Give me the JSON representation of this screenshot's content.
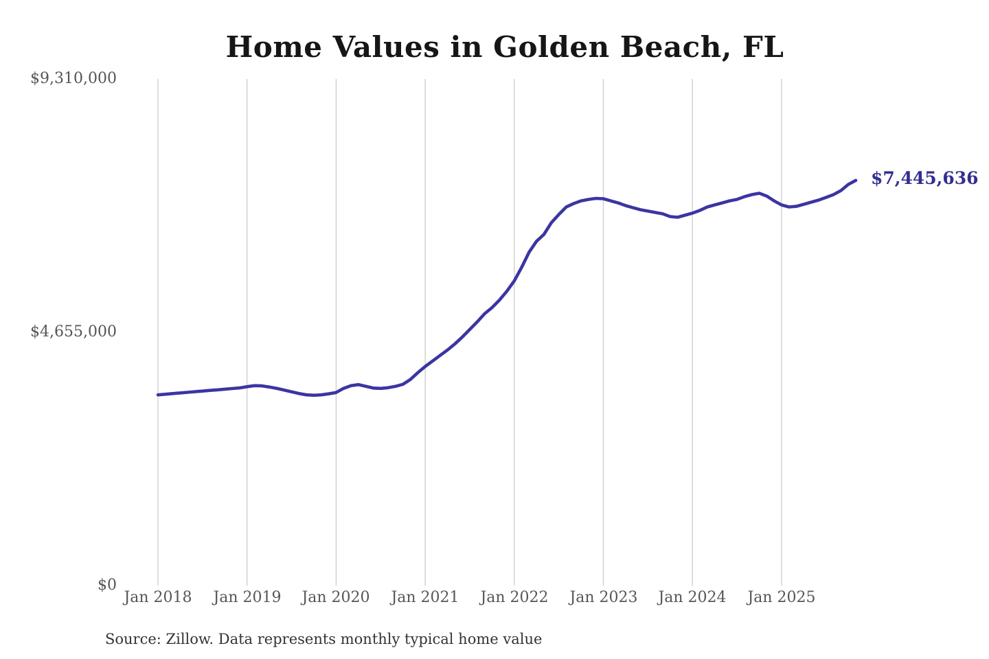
{
  "page": {
    "title": "Home Values in Golden Beach, FL"
  },
  "annotation": {
    "end_value_label": "$7,445,636"
  },
  "footer": {
    "source_note": "Source: Zillow. Data represents monthly typical home value"
  },
  "colors": {
    "background": "#ffffff",
    "line": "#3b35a2",
    "gridline": "#cccccc",
    "title": "#161616",
    "axis_label": "#565656",
    "annotation": "#322e92",
    "source": "#333333"
  },
  "chart_data": {
    "type": "line",
    "title": "Home Values in Golden Beach, FL",
    "xlabel": "",
    "ylabel": "",
    "x_tick_labels": [
      "Jan 2018",
      "Jan 2019",
      "Jan 2020",
      "Jan 2021",
      "Jan 2022",
      "Jan 2023",
      "Jan 2024",
      "Jan 2025"
    ],
    "y_ticks": [
      {
        "label": "$0",
        "value": 0
      },
      {
        "label": "$4,655,000",
        "value": 4655000
      },
      {
        "label": "$9,310,000",
        "value": 9310000
      }
    ],
    "ylim": [
      0,
      9310000
    ],
    "x_range": [
      "Jan 2018",
      "Nov 2025"
    ],
    "interval": "monthly",
    "grid": "vertical-yearly-only",
    "legend": "none",
    "end_value": 7445636,
    "series": [
      {
        "name": "Typical home value (USD)",
        "values": [
          3504000,
          3516000,
          3528000,
          3540000,
          3551000,
          3563000,
          3574000,
          3586000,
          3597000,
          3609000,
          3620000,
          3632000,
          3655000,
          3673000,
          3670000,
          3648000,
          3623000,
          3592000,
          3560000,
          3529000,
          3504000,
          3497000,
          3504000,
          3523000,
          3548000,
          3623000,
          3673000,
          3692000,
          3661000,
          3630000,
          3623000,
          3636000,
          3661000,
          3699000,
          3787000,
          3912000,
          4026000,
          4127000,
          4228000,
          4328000,
          4441000,
          4567000,
          4706000,
          4845000,
          4995000,
          5108000,
          5247000,
          5410000,
          5598000,
          5850000,
          6127000,
          6328000,
          6454000,
          6668000,
          6819000,
          6957000,
          7020000,
          7070000,
          7096000,
          7115000,
          7109000,
          7070000,
          7032000,
          6982000,
          6944000,
          6907000,
          6882000,
          6856000,
          6831000,
          6781000,
          6768000,
          6806000,
          6844000,
          6894000,
          6957000,
          6995000,
          7032000,
          7070000,
          7096000,
          7146000,
          7184000,
          7209000,
          7158000,
          7070000,
          6995000,
          6957000,
          6969000,
          7007000,
          7045000,
          7083000,
          7133000,
          7184000,
          7259000,
          7372000,
          7445636
        ]
      }
    ]
  }
}
